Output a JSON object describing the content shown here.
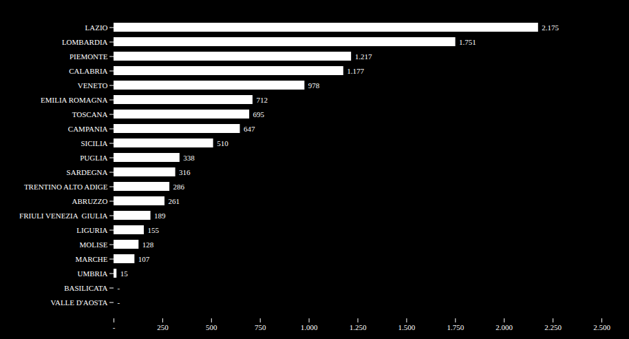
{
  "chart_data": {
    "type": "bar",
    "orientation": "horizontal",
    "categories": [
      "LAZIO",
      "LOMBARDIA",
      "PIEMONTE",
      "CALABRIA",
      "VENETO",
      "EMILIA ROMAGNA",
      "TOSCANA",
      "CAMPANIA",
      "SICILIA",
      "PUGLIA",
      "SARDEGNA",
      "TRENTINO ALTO ADIGE",
      "ABRUZZO",
      "FRIULI VENEZIA  GIULIA",
      "LIGURIA",
      "MOLISE",
      "MARCHE",
      "UMBRIA",
      "BASILICATA",
      "VALLE D'AOSTA"
    ],
    "values": [
      2175,
      1751,
      1217,
      1177,
      978,
      712,
      695,
      647,
      510,
      338,
      316,
      286,
      261,
      189,
      155,
      128,
      107,
      15,
      0,
      0
    ],
    "value_labels": [
      "2.175",
      "1.751",
      "1.217",
      "1.177",
      "978",
      "712",
      "695",
      "647",
      "510",
      "338",
      "316",
      "286",
      "261",
      "189",
      "155",
      "128",
      "107",
      "15",
      "-",
      "-"
    ],
    "color": "#ffffff",
    "xlim": [
      0,
      2500
    ],
    "xticks": [
      {
        "value": 0,
        "label": "-"
      },
      250,
      500,
      750,
      {
        "value": 1000,
        "label": "1.000"
      },
      {
        "value": 1250,
        "label": "1.250"
      },
      {
        "value": 1500,
        "label": "1.500"
      },
      {
        "value": 1750,
        "label": "1.750"
      },
      {
        "value": 2000,
        "label": "2.000"
      },
      {
        "value": 2250,
        "label": "2.250"
      },
      {
        "value": 2500,
        "label": "2.500"
      }
    ],
    "grid": false,
    "data_labels": true
  }
}
